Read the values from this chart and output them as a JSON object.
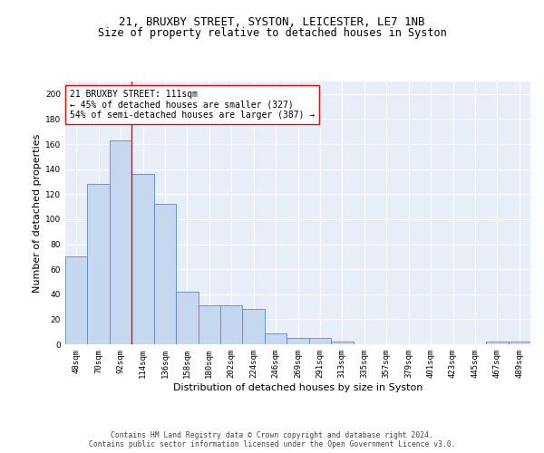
{
  "title1": "21, BRUXBY STREET, SYSTON, LEICESTER, LE7 1NB",
  "title2": "Size of property relative to detached houses in Syston",
  "xlabel": "Distribution of detached houses by size in Syston",
  "ylabel": "Number of detached properties",
  "categories": [
    "48sqm",
    "70sqm",
    "92sqm",
    "114sqm",
    "136sqm",
    "158sqm",
    "180sqm",
    "202sqm",
    "224sqm",
    "246sqm",
    "269sqm",
    "291sqm",
    "313sqm",
    "335sqm",
    "357sqm",
    "379sqm",
    "401sqm",
    "423sqm",
    "445sqm",
    "467sqm",
    "489sqm"
  ],
  "values": [
    70,
    128,
    163,
    136,
    112,
    42,
    31,
    31,
    28,
    9,
    5,
    5,
    2,
    0,
    0,
    0,
    0,
    0,
    0,
    2,
    2
  ],
  "bar_color": "#c5d8f0",
  "bar_edge_color": "#5b8ac5",
  "vline_x": 2.5,
  "vline_color": "red",
  "annotation_text": "21 BRUXBY STREET: 111sqm\n← 45% of detached houses are smaller (327)\n54% of semi-detached houses are larger (387) →",
  "annotation_box_color": "white",
  "annotation_box_edge": "red",
  "footer1": "Contains HM Land Registry data © Crown copyright and database right 2024.",
  "footer2": "Contains public sector information licensed under the Open Government Licence v3.0.",
  "ylim": [
    0,
    210
  ],
  "yticks": [
    0,
    20,
    40,
    60,
    80,
    100,
    120,
    140,
    160,
    180,
    200
  ],
  "bg_color": "#e8eef8",
  "grid_color": "#ffffff",
  "title1_fontsize": 9,
  "title2_fontsize": 8.5,
  "xlabel_fontsize": 8,
  "ylabel_fontsize": 8,
  "annot_fontsize": 7,
  "tick_fontsize": 6.5
}
